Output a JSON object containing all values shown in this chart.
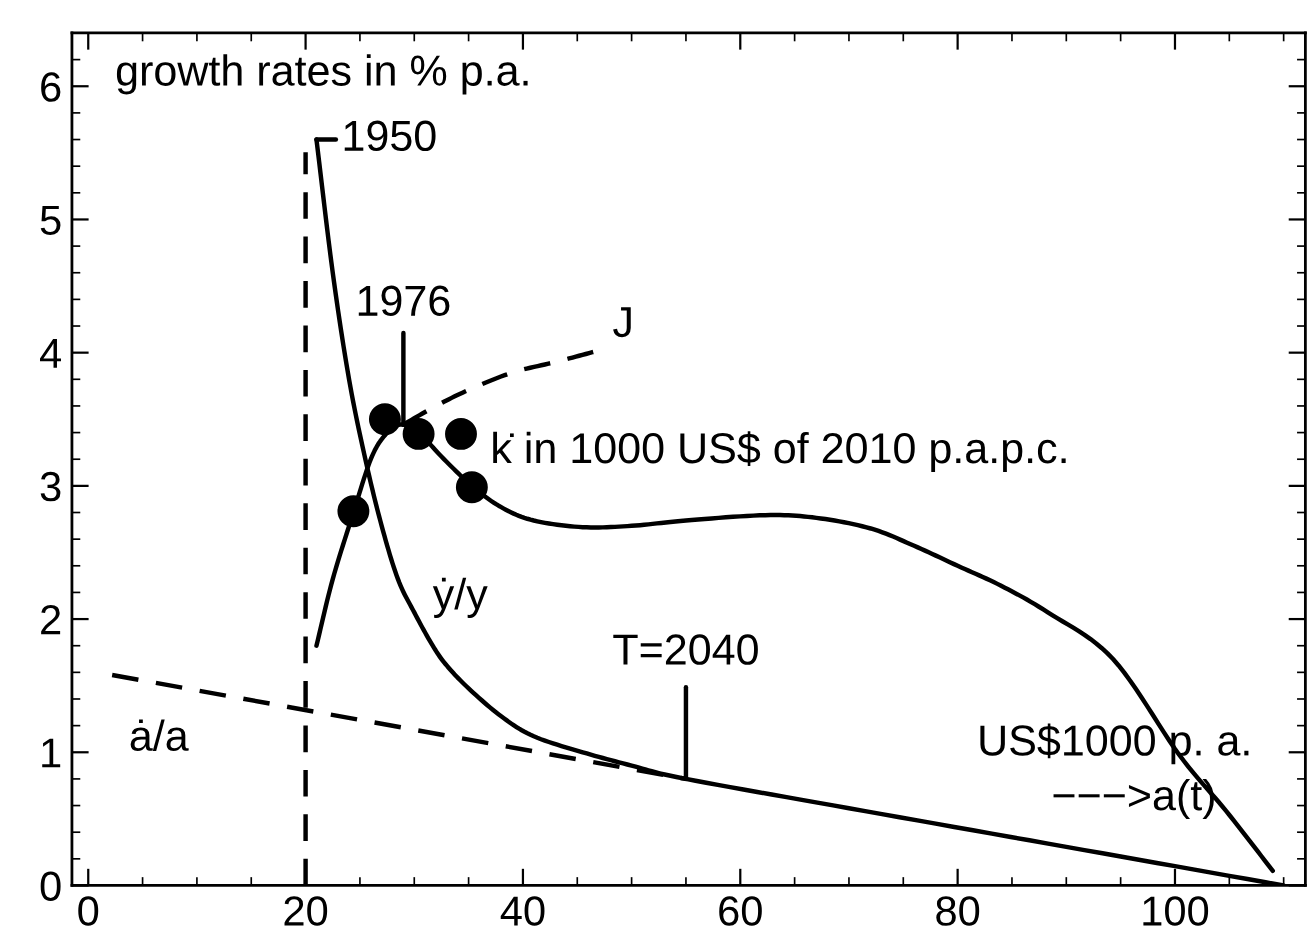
{
  "chart_data": {
    "type": "line",
    "xlim": [
      -1.5,
      112
    ],
    "ylim": [
      0,
      6.4
    ],
    "xticks": [
      0,
      20,
      40,
      60,
      80,
      100
    ],
    "yticks": [
      0,
      1,
      2,
      3,
      4,
      5,
      6
    ],
    "legend": false,
    "series": [
      {
        "line_style": "solid",
        "color": "#000000",
        "x": [
          21,
          22.5,
          24,
          25.5,
          27,
          28.5,
          30,
          31.7,
          33,
          35,
          38,
          41,
          45.5,
          50,
          55,
          70,
          90,
          110
        ],
        "values": [
          5.6,
          4.6,
          3.8,
          3.2,
          2.7,
          2.3,
          2.05,
          1.8,
          1.65,
          1.48,
          1.27,
          1.12,
          1.0,
          0.9,
          0.8,
          0.58,
          0.29,
          0
        ]
      },
      {
        "line_style": "solid",
        "color": "#000000",
        "x": [
          21,
          22.5,
          24.4,
          26,
          27.3,
          28.7,
          30.4,
          32.5,
          35.3,
          38,
          41,
          45.5,
          50,
          55,
          62.3,
          67,
          72,
          76,
          80,
          84,
          88.3,
          94.3,
          100.4,
          104.7,
          109
        ],
        "values": [
          1.8,
          2.3,
          2.8,
          3.2,
          3.38,
          3.46,
          3.4,
          3.22,
          3.0,
          2.84,
          2.74,
          2.69,
          2.7,
          2.74,
          2.78,
          2.76,
          2.68,
          2.55,
          2.4,
          2.25,
          2.05,
          1.7,
          0.98,
          0.56,
          0.11
        ]
      },
      {
        "line_style": "dashed",
        "color": "#000000",
        "x": [
          29,
          32,
          35,
          39,
          43,
          46.7
        ],
        "values": [
          3.46,
          3.6,
          3.72,
          3.85,
          3.93,
          4.01
        ]
      },
      {
        "line_style": "dashed",
        "color": "#000000",
        "x": [
          2.2,
          55
        ],
        "values": [
          1.58,
          0.8
        ]
      },
      {
        "type": "scatter",
        "marker": "circle",
        "color": "#000000",
        "x": [
          24.4,
          27.3,
          30.4,
          34.3,
          35.3
        ],
        "values": [
          2.81,
          3.5,
          3.39,
          3.39,
          2.99
        ]
      }
    ],
    "ref_lines": [
      {
        "axis": "x",
        "value": 20,
        "line_style": "dashed",
        "color": "#000000"
      }
    ],
    "annotations": [
      "growth rates in % p.a.",
      {
        "text": "1950",
        "x": 21,
        "y": 5.6
      },
      {
        "text": "1976",
        "x": 29,
        "y": 3.46
      },
      {
        "text": "T=2040",
        "x": 55,
        "y": 0.8
      },
      {
        "text": "J",
        "x": 46.7,
        "y": 4.01
      },
      {
        "text": "k̇ in 1000 US$ of 2010 p.a.p.c.",
        "x": 37,
        "y": 3.0
      },
      {
        "text": "ẏ/y",
        "x": 31.7,
        "y": 1.8
      },
      {
        "text": "ȧ/a",
        "x": 2.2,
        "y": 1.58
      },
      "US$1000 p. a.",
      "−−−>a(t)"
    ]
  }
}
